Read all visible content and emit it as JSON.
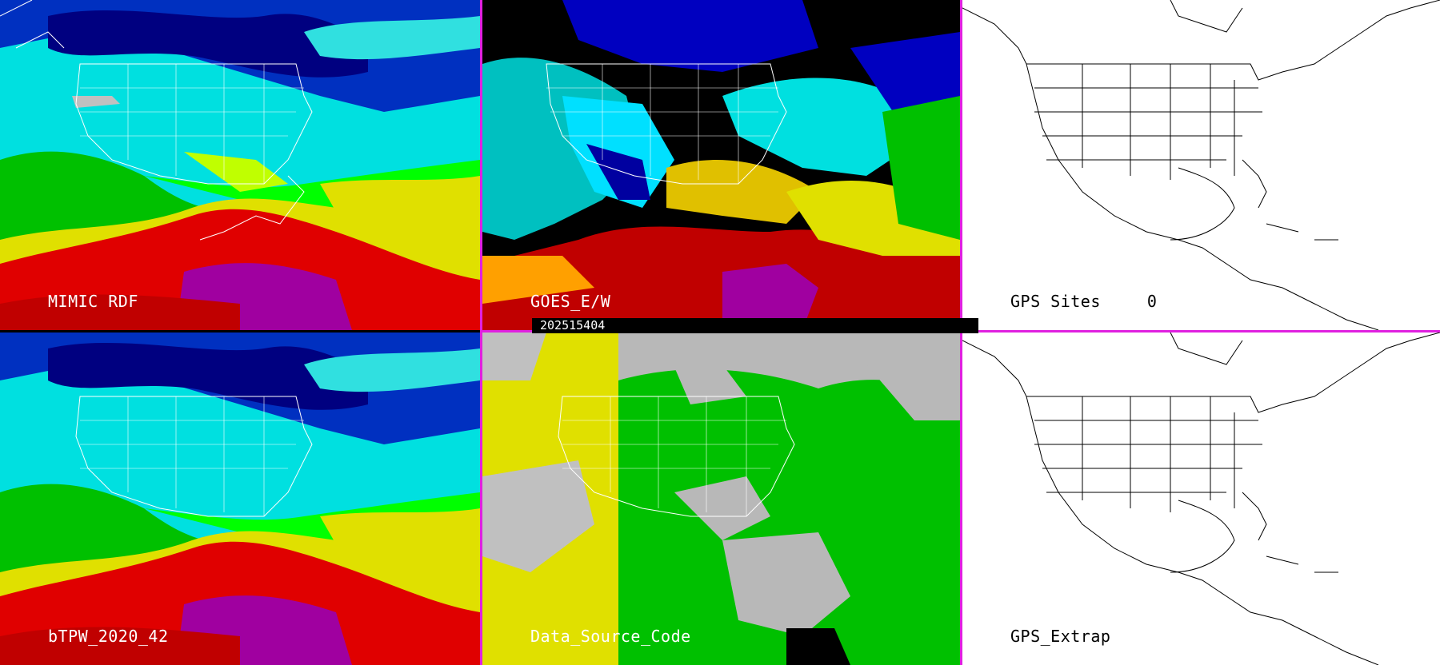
{
  "panels": {
    "mimic": {
      "label": "MIMIC RDF"
    },
    "goes": {
      "label": "GOES_E/W"
    },
    "gps_sites": {
      "label": "GPS Sites",
      "count": "0"
    },
    "btpw": {
      "label": "bTPW_2020_42"
    },
    "data_source": {
      "label": "Data_Source_Code"
    },
    "gps_extrap": {
      "label": "GPS_Extrap"
    }
  },
  "timestamp": "202515404",
  "colors": {
    "divider": "#e020e0",
    "tpw_palette": [
      "#ffffff",
      "#c0c0c0",
      "#000080",
      "#0000ff",
      "#00c0ff",
      "#00ffff",
      "#00c000",
      "#00ff00",
      "#c0ff00",
      "#ffff00",
      "#ff0000",
      "#c00000",
      "#a000a0",
      "#800080"
    ],
    "source_palette": [
      "#e0e000",
      "#c0c0c0",
      "#00c000",
      "#000000"
    ]
  },
  "icons": [
    "state-boundary-map"
  ]
}
